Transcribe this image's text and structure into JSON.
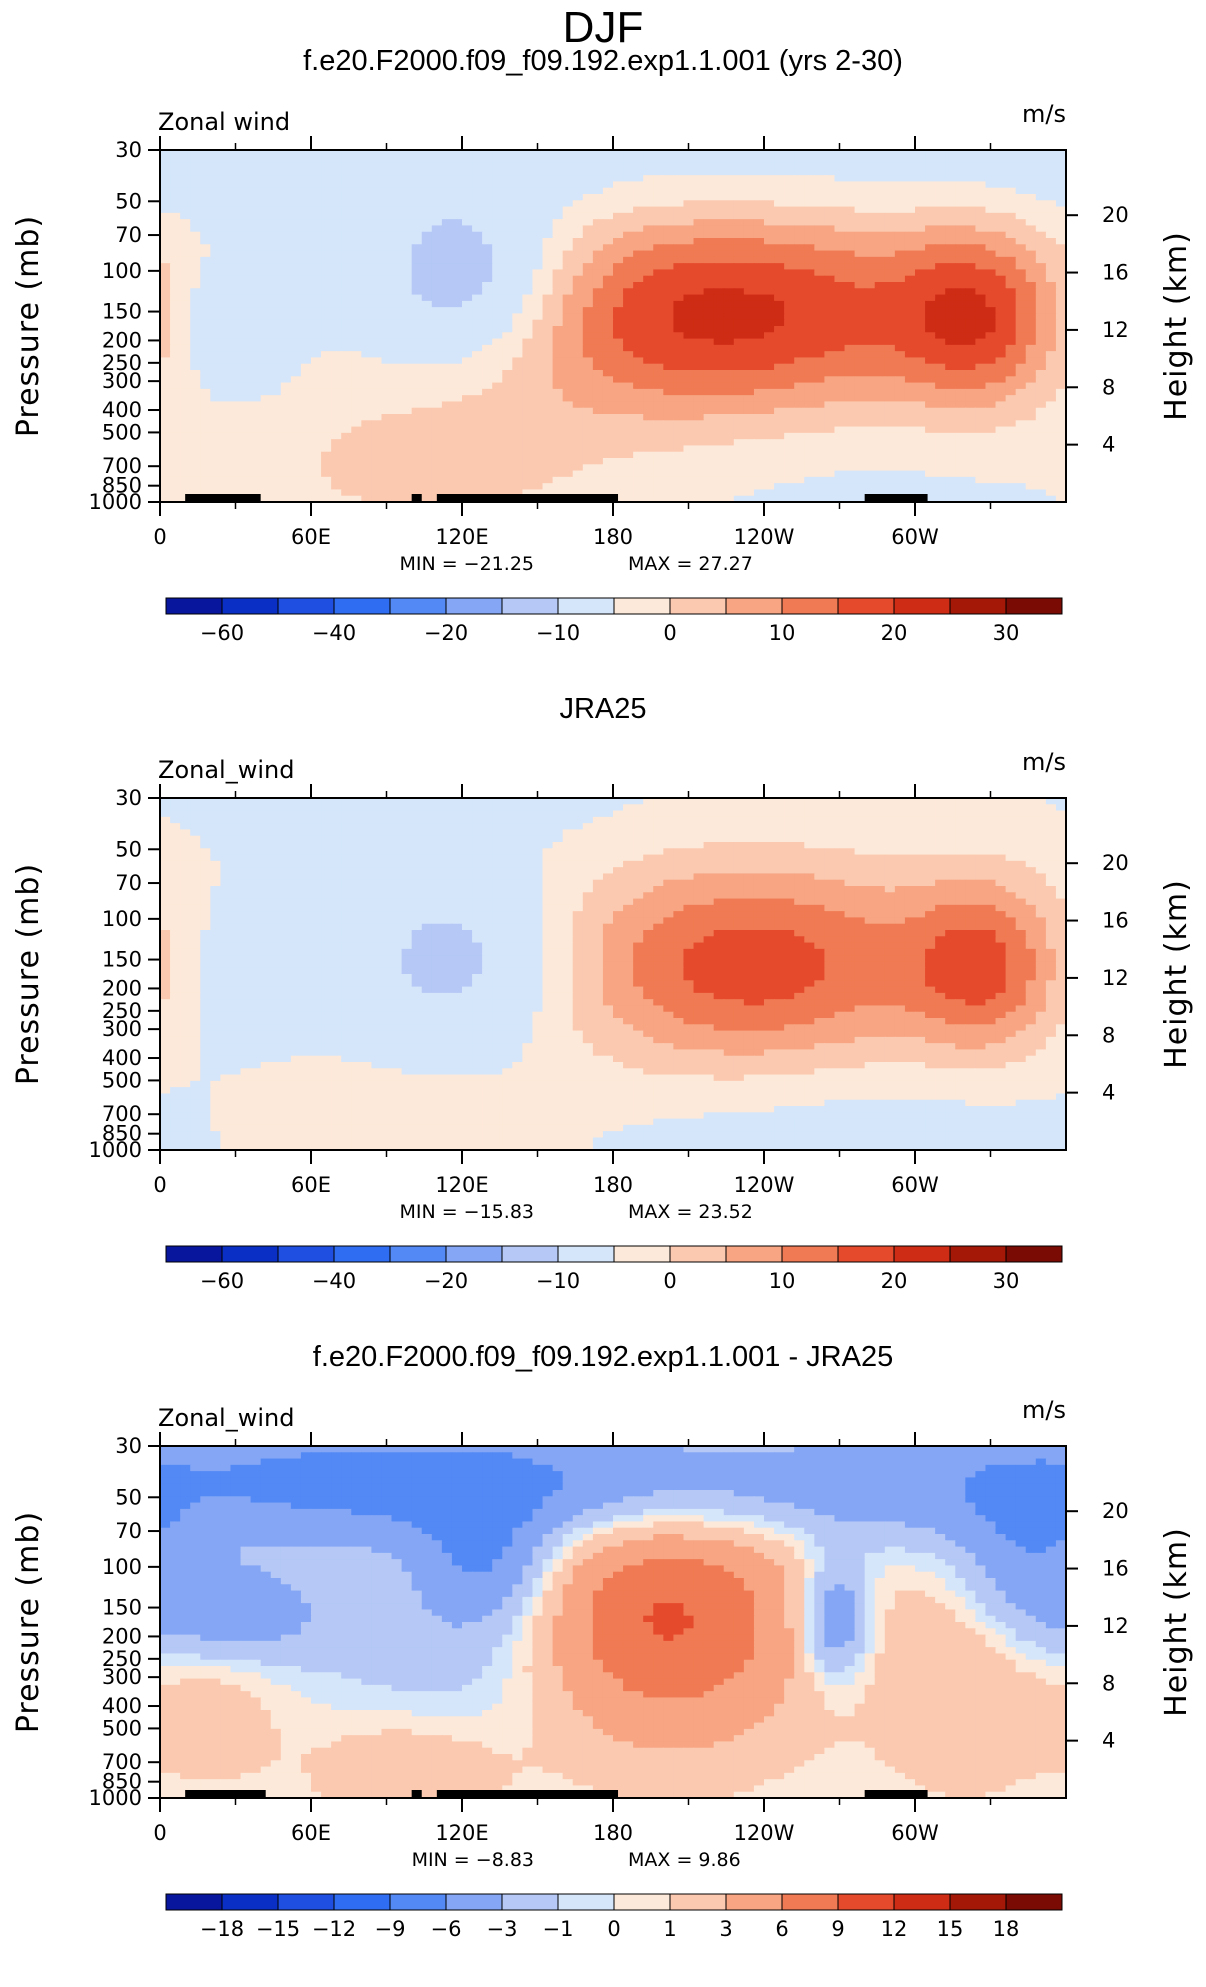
{
  "figure": {
    "title": "DJF"
  },
  "colors": {
    "scale": [
      "#08169e",
      "#0a2fc4",
      "#1e4fe0",
      "#2f6ef2",
      "#5289f5",
      "#84a6f5",
      "#b5c8f6",
      "#d5e6fa",
      "#fde9d9",
      "#fbc9b0",
      "#f7a582",
      "#f07a53",
      "#e64a2d",
      "#cf2c15",
      "#a41808",
      "#7a0a04"
    ],
    "land": "#000000"
  },
  "chart_data": [
    {
      "type": "heatmap",
      "title": "f.e20.F2000.f09_f09.192.exp1.1.001 (yrs 2-30)",
      "variable_label": "Zonal wind",
      "units_label": "m/s",
      "ylabel": "Pressure (mb)",
      "y2label": "Height (km)",
      "x_ticks": [
        "0",
        "60E",
        "120E",
        "180",
        "120W",
        "60W"
      ],
      "x_tick_lon": [
        0,
        60,
        120,
        180,
        240,
        300
      ],
      "y_ticks": [
        "30",
        "50",
        "70",
        "100",
        "150",
        "200",
        "250",
        "300",
        "400",
        "500",
        "700",
        "850",
        "1000"
      ],
      "y_tick_p": [
        30,
        50,
        70,
        100,
        150,
        200,
        250,
        300,
        400,
        500,
        700,
        850,
        1000
      ],
      "y2_ticks": [
        "20",
        "16",
        "12",
        "8",
        "4"
      ],
      "y2_tick_km": [
        20,
        16,
        12,
        8,
        4
      ],
      "min_text": "MIN = −21.25",
      "max_text": "MAX = 27.27",
      "colorbar_labels": [
        "−60",
        "−40",
        "−20",
        "−10",
        "0",
        "10",
        "20",
        "30"
      ],
      "colorbar_label_bins": [
        1,
        3,
        5,
        7,
        9,
        11,
        13,
        15
      ],
      "features": [
        {
          "lon": 225,
          "p": 160,
          "dlon": 68,
          "dlogp": 0.33,
          "amp": 27
        },
        {
          "lon": 325,
          "p": 160,
          "dlon": 23,
          "dlogp": 0.28,
          "amp": 18
        },
        {
          "lon": 122,
          "p": 110,
          "dlon": 28,
          "dlogp": 0.25,
          "amp": -20
        },
        {
          "lon": 28,
          "p": 170,
          "dlon": 18,
          "dlogp": 0.2,
          "amp": -7
        },
        {
          "lon": 105,
          "p": 700,
          "dlon": 48,
          "dlogp": 0.22,
          "amp": 7
        },
        {
          "lon": 260,
          "p": 40,
          "dlon": 90,
          "dlogp": 0.15,
          "amp": -4
        },
        {
          "lon": 90,
          "p": 40,
          "dlon": 80,
          "dlogp": 0.15,
          "amp": -3
        },
        {
          "lon": 270,
          "p": 600,
          "dlon": 60,
          "dlogp": 0.3,
          "amp": -3
        }
      ],
      "land_segments": [
        [
          10,
          40
        ],
        [
          100,
          104
        ],
        [
          110,
          182
        ],
        [
          280,
          305
        ]
      ]
    },
    {
      "type": "heatmap",
      "title": "JRA25",
      "variable_label": "Zonal_wind",
      "units_label": "m/s",
      "ylabel": "Pressure (mb)",
      "y2label": "Height (km)",
      "x_ticks": [
        "0",
        "60E",
        "120E",
        "180",
        "120W",
        "60W"
      ],
      "x_tick_lon": [
        0,
        60,
        120,
        180,
        240,
        300
      ],
      "y_ticks": [
        "30",
        "50",
        "70",
        "100",
        "150",
        "200",
        "250",
        "300",
        "400",
        "500",
        "700",
        "850",
        "1000"
      ],
      "y_tick_p": [
        30,
        50,
        70,
        100,
        150,
        200,
        250,
        300,
        400,
        500,
        700,
        850,
        1000
      ],
      "y2_ticks": [
        "20",
        "16",
        "12",
        "8",
        "4"
      ],
      "y2_tick_km": [
        20,
        16,
        12,
        8,
        4
      ],
      "min_text": "MIN = −15.83",
      "max_text": "MAX = 23.52",
      "colorbar_labels": [
        "−60",
        "−40",
        "−20",
        "−10",
        "0",
        "10",
        "20",
        "30"
      ],
      "colorbar_label_bins": [
        1,
        3,
        5,
        7,
        9,
        11,
        13,
        15
      ],
      "features": [
        {
          "lon": 235,
          "p": 160,
          "dlon": 55,
          "dlogp": 0.32,
          "amp": 23
        },
        {
          "lon": 328,
          "p": 160,
          "dlon": 22,
          "dlogp": 0.27,
          "amp": 18
        },
        {
          "lon": 118,
          "p": 150,
          "dlon": 30,
          "dlogp": 0.28,
          "amp": -14
        },
        {
          "lon": 30,
          "p": 170,
          "dlon": 22,
          "dlogp": 0.22,
          "amp": -3
        },
        {
          "lon": 95,
          "p": 750,
          "dlon": 45,
          "dlogp": 0.2,
          "amp": 4
        },
        {
          "lon": 270,
          "p": 800,
          "dlon": 70,
          "dlogp": 0.25,
          "amp": -4
        },
        {
          "lon": 180,
          "p": 35,
          "dlon": 120,
          "dlogp": 0.12,
          "amp": -1.5
        }
      ],
      "land_segments": []
    },
    {
      "type": "heatmap",
      "title": "f.e20.F2000.f09_f09.192.exp1.1.001 - JRA25",
      "variable_label": "Zonal_wind",
      "units_label": "m/s",
      "ylabel": "Pressure (mb)",
      "y2label": "Height (km)",
      "x_ticks": [
        "0",
        "60E",
        "120E",
        "180",
        "120W",
        "60W"
      ],
      "x_tick_lon": [
        0,
        60,
        120,
        180,
        240,
        300
      ],
      "y_ticks": [
        "30",
        "50",
        "70",
        "100",
        "150",
        "200",
        "250",
        "300",
        "400",
        "500",
        "700",
        "850",
        "1000"
      ],
      "y_tick_p": [
        30,
        50,
        70,
        100,
        150,
        200,
        250,
        300,
        400,
        500,
        700,
        850,
        1000
      ],
      "y2_ticks": [
        "20",
        "16",
        "12",
        "8",
        "4"
      ],
      "y2_tick_km": [
        20,
        16,
        12,
        8,
        4
      ],
      "min_text": "MIN = −8.83",
      "max_text": "MAX = 9.86",
      "colorbar_labels": [
        "−18",
        "−15",
        "−12",
        "−9",
        "−6",
        "−3",
        "−1",
        "0",
        "1",
        "3",
        "6",
        "9",
        "12",
        "15",
        "18"
      ],
      "colorbar_label_bins": [
        1,
        2,
        3,
        4,
        5,
        6,
        7,
        8,
        9,
        10,
        11,
        12,
        13,
        14,
        15
      ],
      "colorbar_levels": [
        -18,
        -15,
        -12,
        -9,
        -6,
        -3,
        -1,
        0,
        1,
        3,
        6,
        9,
        12,
        15,
        18
      ],
      "features": [
        {
          "lon": 200,
          "p": 170,
          "dlon": 40,
          "dlogp": 0.38,
          "amp": 9.5
        },
        {
          "lon": 320,
          "p": 300,
          "dlon": 25,
          "dlogp": 0.35,
          "amp": 3
        },
        {
          "lon": 22,
          "p": 400,
          "dlon": 20,
          "dlogp": 0.25,
          "amp": 2
        },
        {
          "lon": 100,
          "p": 700,
          "dlon": 30,
          "dlogp": 0.2,
          "amp": 3
        },
        {
          "lon": 200,
          "p": 45,
          "dlon": 150,
          "dlogp": 0.18,
          "amp": -5
        },
        {
          "lon": 70,
          "p": 40,
          "dlon": 90,
          "dlogp": 0.2,
          "amp": -4
        },
        {
          "lon": 130,
          "p": 100,
          "dlon": 20,
          "dlogp": 0.2,
          "amp": -6
        },
        {
          "lon": 268,
          "p": 170,
          "dlon": 10,
          "dlogp": 0.18,
          "amp": -7
        },
        {
          "lon": 30,
          "p": 160,
          "dlon": 25,
          "dlogp": 0.15,
          "amp": -5
        },
        {
          "lon": 345,
          "p": 100,
          "dlon": 20,
          "dlogp": 0.25,
          "amp": -5
        },
        {
          "lon": 120,
          "p": 300,
          "dlon": 40,
          "dlogp": 0.3,
          "amp": -2.5
        }
      ],
      "land_segments": [
        [
          10,
          42
        ],
        [
          100,
          104
        ],
        [
          110,
          182
        ],
        [
          280,
          305
        ]
      ]
    }
  ]
}
